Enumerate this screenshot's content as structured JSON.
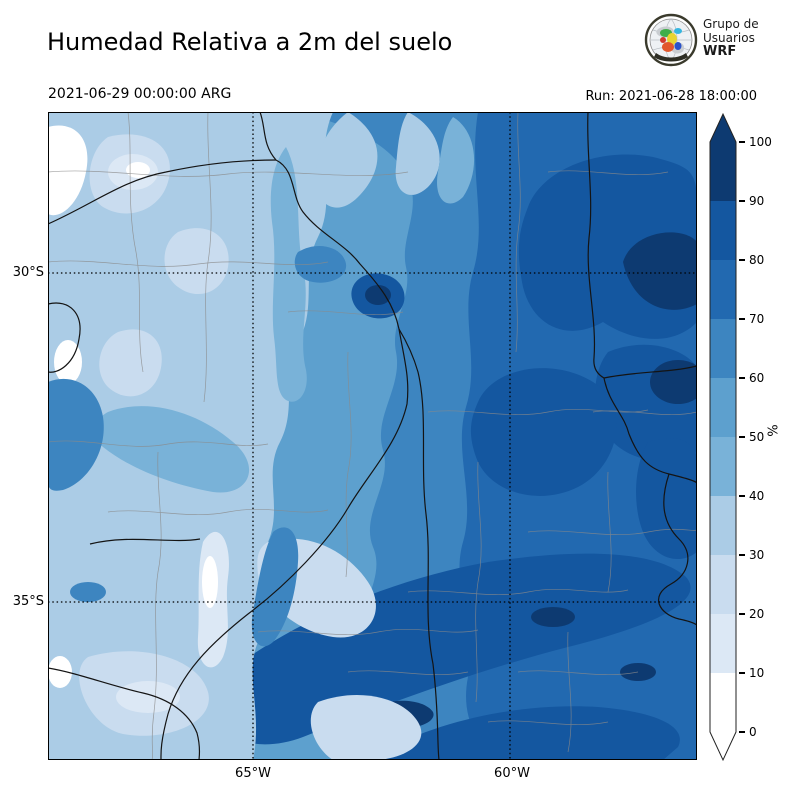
{
  "header": {
    "title": "Humedad Relativa a 2m del suelo",
    "valid_time": "2021-06-29 00:00:00 ARG",
    "run_time": "Run: 2021-06-28 18:00:00"
  },
  "logo": {
    "line1": "Grupo de",
    "line2": "Usuarios",
    "line3": "WRF"
  },
  "map": {
    "lat_labels": [
      {
        "text": "30°S"
      },
      {
        "text": "35°S"
      }
    ],
    "lon_labels": [
      {
        "text": "65°W"
      },
      {
        "text": "60°W"
      }
    ]
  },
  "colorbar": {
    "unit": "%",
    "ticks": [
      "100",
      "90",
      "80",
      "70",
      "60",
      "50",
      "40",
      "30",
      "20",
      "10",
      "0"
    ],
    "segments": [
      {
        "range": "90-100",
        "color": "#0d3a71"
      },
      {
        "range": "80-90",
        "color": "#1457a0"
      },
      {
        "range": "70-80",
        "color": "#2269b0"
      },
      {
        "range": "60-70",
        "color": "#3d85c0"
      },
      {
        "range": "50-60",
        "color": "#5da0ce"
      },
      {
        "range": "40-50",
        "color": "#79b2d8"
      },
      {
        "range": "30-40",
        "color": "#abcce6"
      },
      {
        "range": "20-30",
        "color": "#c9dcef"
      },
      {
        "range": "10-20",
        "color": "#dce8f5"
      },
      {
        "range": "0-10",
        "color": "#ffffff"
      }
    ],
    "extend_up_color": "#0d3a71",
    "extend_down_color": "#ffffff"
  }
}
